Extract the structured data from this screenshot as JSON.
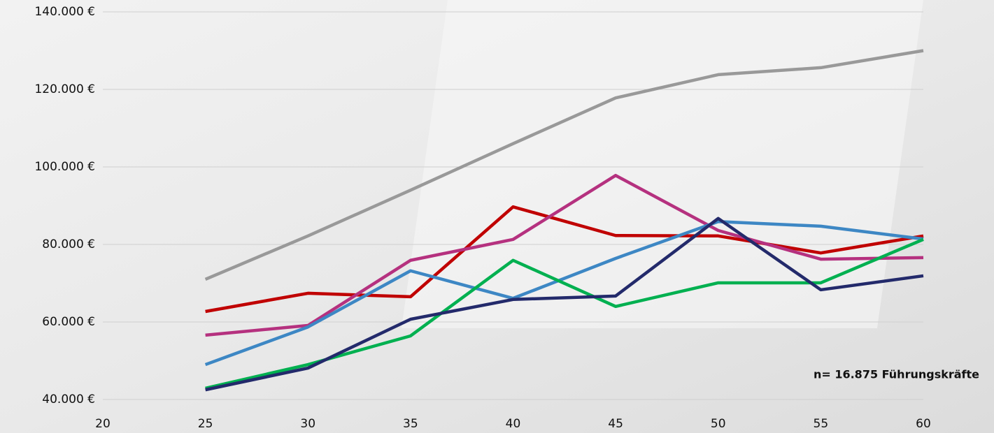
{
  "chart_data": {
    "type": "line",
    "annotation": "n= 16.875 Führungskräfte",
    "xlim": [
      20,
      60
    ],
    "xticks": [
      20,
      25,
      30,
      35,
      40,
      45,
      50,
      55,
      60
    ],
    "ylim": [
      40000,
      140000
    ],
    "yticks": [
      {
        "value": 40000,
        "label": "40.000 €"
      },
      {
        "value": 60000,
        "label": "60.000 €"
      },
      {
        "value": 80000,
        "label": "80.000 €"
      },
      {
        "value": 100000,
        "label": "100.000 €"
      },
      {
        "value": 120000,
        "label": "120.000 €"
      },
      {
        "value": 140000,
        "label": "140.000 €"
      }
    ],
    "grid": true,
    "x": [
      25,
      30,
      35,
      40,
      45,
      50,
      55,
      60
    ],
    "series": [
      {
        "color": "#999999",
        "values": [
          71000,
          82200,
          94000,
          106000,
          117800,
          123800,
          125600,
          130000
        ]
      },
      {
        "color": "#c00000",
        "values": [
          62700,
          67400,
          66500,
          89700,
          82300,
          82200,
          77800,
          82200
        ]
      },
      {
        "color": "#b5317f",
        "values": [
          56600,
          59100,
          75900,
          81300,
          97800,
          83600,
          76200,
          76600
        ]
      },
      {
        "color": "#3d87c4",
        "values": [
          49000,
          58700,
          73200,
          66100,
          76400,
          85900,
          84700,
          81400
        ]
      },
      {
        "color": "#00b050",
        "values": [
          42900,
          49000,
          56400,
          75900,
          64000,
          70100,
          70100,
          81300
        ]
      },
      {
        "color": "#232a6b",
        "values": [
          42500,
          48100,
          60700,
          65800,
          66700,
          86700,
          68300,
          71900
        ]
      }
    ]
  }
}
